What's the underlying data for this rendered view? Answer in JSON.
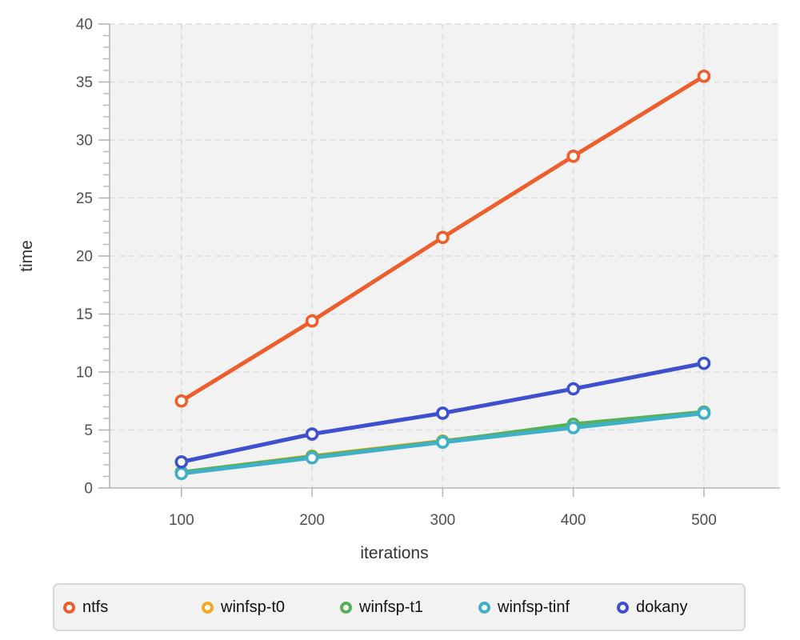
{
  "chart_data": {
    "type": "line",
    "title": "",
    "xlabel": "iterations",
    "ylabel": "time",
    "x": [
      100,
      200,
      300,
      400,
      500
    ],
    "x_ticks": [
      100,
      200,
      300,
      400,
      500
    ],
    "y_ticks": [
      0,
      5,
      10,
      15,
      20,
      25,
      30,
      35,
      40
    ],
    "y_minor_tick_step": 1,
    "xlim": [
      45,
      557
    ],
    "ylim": [
      0,
      40
    ],
    "grid": "dashed gridlines at major ticks, both axes",
    "legend_position": "bottom",
    "series": [
      {
        "name": "ntfs",
        "color": "#ee5d2c",
        "values": [
          7.5,
          14.4,
          21.6,
          28.6,
          35.5
        ]
      },
      {
        "name": "winfsp-t0",
        "color": "#f3a81f",
        "values": [
          1.35,
          2.75,
          4.05,
          5.3,
          6.5
        ]
      },
      {
        "name": "winfsp-t1",
        "color": "#56b156",
        "values": [
          1.35,
          2.7,
          4.0,
          5.5,
          6.55
        ]
      },
      {
        "name": "winfsp-tinf",
        "color": "#3fb0c7",
        "values": [
          1.25,
          2.6,
          3.95,
          5.2,
          6.45
        ]
      },
      {
        "name": "dokany",
        "color": "#3e50ce",
        "values": [
          2.25,
          4.65,
          6.45,
          8.55,
          10.75
        ]
      }
    ],
    "marker_style": "open circle, white fill, colored ring"
  },
  "colors": {
    "plot_bg": "#f2f2f2",
    "grid": "#dcdcdc",
    "axis": "#b6b6b6",
    "tick": "#b6b6b6",
    "tick_label": "#4f4f4f",
    "axis_title": "#333333",
    "legend_bg": "#f2f2f2",
    "legend_border": "#d8d8d8",
    "legend_text": "#111111",
    "marker_fill": "#ffffff"
  }
}
